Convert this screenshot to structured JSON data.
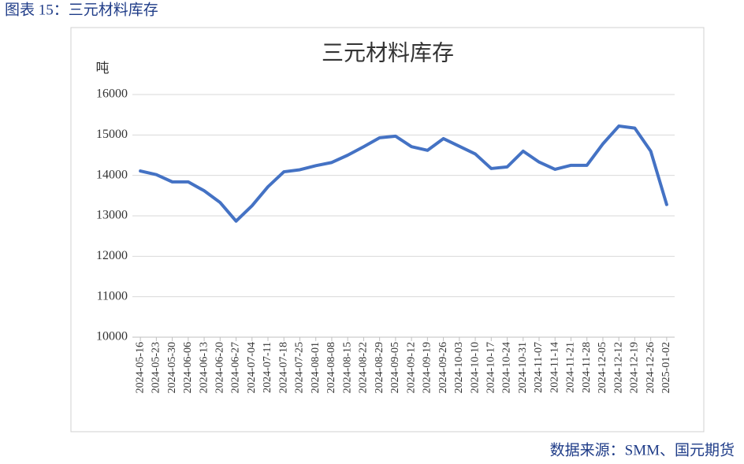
{
  "header": {
    "title": "图表 15：三元材料库存"
  },
  "chart_data": {
    "type": "line",
    "title": "三元材料库存",
    "y_label": "吨",
    "categories": [
      "2024-05-16",
      "2024-05-23",
      "2024-05-30",
      "2024-06-06",
      "2024-06-13",
      "2024-06-20",
      "2024-06-27",
      "2024-07-04",
      "2024-07-11",
      "2024-07-18",
      "2024-07-25",
      "2024-08-01",
      "2024-08-08",
      "2024-08-15",
      "2024-08-22",
      "2024-08-29",
      "2024-09-05",
      "2024-09-12",
      "2024-09-19",
      "2024-09-26",
      "2024-10-03",
      "2024-10-10",
      "2024-10-17",
      "2024-10-24",
      "2024-10-31",
      "2024-11-07",
      "2024-11-14",
      "2024-11-21",
      "2024-11-28",
      "2024-12-05",
      "2024-12-12",
      "2024-12-19",
      "2024-12-26",
      "2025-01-02"
    ],
    "values": [
      14110,
      14020,
      13840,
      13840,
      13620,
      13330,
      12870,
      13250,
      13720,
      14090,
      14140,
      14240,
      14320,
      14500,
      14710,
      14930,
      14970,
      14710,
      14620,
      14910,
      14720,
      14530,
      14170,
      14210,
      14600,
      14330,
      14150,
      14250,
      14250,
      14780,
      15220,
      15170,
      14600,
      13280
    ],
    "color": "#4472c4",
    "ylim": [
      10000,
      16000
    ],
    "yticks": [
      10000,
      11000,
      12000,
      13000,
      14000,
      15000,
      16000
    ],
    "grid": true
  },
  "source": "数据来源：SMM、国元期货"
}
